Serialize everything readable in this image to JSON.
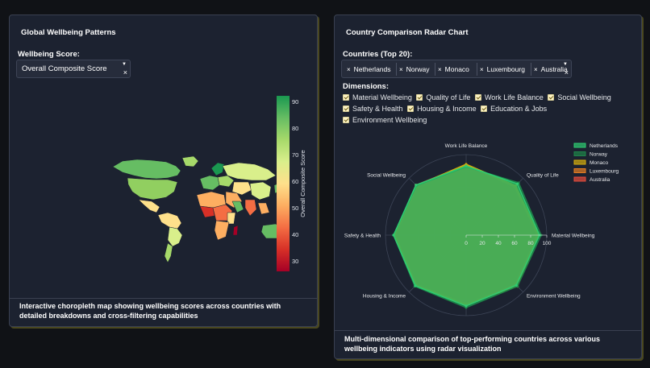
{
  "left": {
    "title": "Global Wellbeing Patterns",
    "score_label": "Wellbeing Score:",
    "score_selected": "Overall Composite Score",
    "colorbar": {
      "title": "Overall Composite Score",
      "ticks": [
        "90",
        "80",
        "70",
        "60",
        "50",
        "40",
        "30"
      ],
      "colors": [
        "#1a9850",
        "#66bd63",
        "#a6d96a",
        "#d9ef8b",
        "#fee08b",
        "#fdae61",
        "#f46d43",
        "#d73027",
        "#a50026"
      ]
    },
    "footer": "Interactive choropleth map showing wellbeing scores across countries with detailed breakdowns and cross-filtering capabilities"
  },
  "right": {
    "title": "Country Comparison Radar Chart",
    "countries_label": "Countries (Top 20):",
    "countries": [
      "Netherlands",
      "Norway",
      "Monaco",
      "Luxembourg",
      "Australia"
    ],
    "dimensions_label": "Dimensions:",
    "dimensions": [
      "Material Wellbeing",
      "Quality of Life",
      "Work Life Balance",
      "Social Wellbeing",
      "Safety & Health",
      "Housing & Income",
      "Education & Jobs",
      "Environment Wellbeing"
    ],
    "footer": "Multi-dimensional comparison of top-performing countries across various wellbeing indicators using radar visualization"
  },
  "chart_data": [
    {
      "type": "radar",
      "axes": [
        "Material Wellbeing",
        "Quality of Life",
        "Work Life Balance",
        "Social Wellbeing",
        "Safety & Health",
        "Housing & Income",
        "Education & Jobs",
        "Environment Wellbeing"
      ],
      "radial_ticks": [
        "0",
        "20",
        "40",
        "60",
        "80",
        "100"
      ],
      "range": [
        0,
        100
      ],
      "series": [
        {
          "name": "Netherlands",
          "color": "#2ecc71",
          "values": [
            91,
            90,
            86,
            88,
            90,
            89,
            88,
            88
          ]
        },
        {
          "name": "Norway",
          "color": "#1e8449",
          "values": [
            93,
            92,
            85,
            87,
            90,
            90,
            90,
            90
          ]
        },
        {
          "name": "Monaco",
          "color": "#d4ac0d",
          "values": [
            90,
            87,
            88,
            87,
            89,
            88,
            86,
            90
          ]
        },
        {
          "name": "Luxembourg",
          "color": "#e67e22",
          "values": [
            89,
            85,
            87,
            86,
            88,
            87,
            86,
            87
          ]
        },
        {
          "name": "Australia",
          "color": "#e74c3c",
          "values": [
            88,
            86,
            87,
            88,
            89,
            88,
            87,
            86
          ]
        }
      ]
    }
  ]
}
